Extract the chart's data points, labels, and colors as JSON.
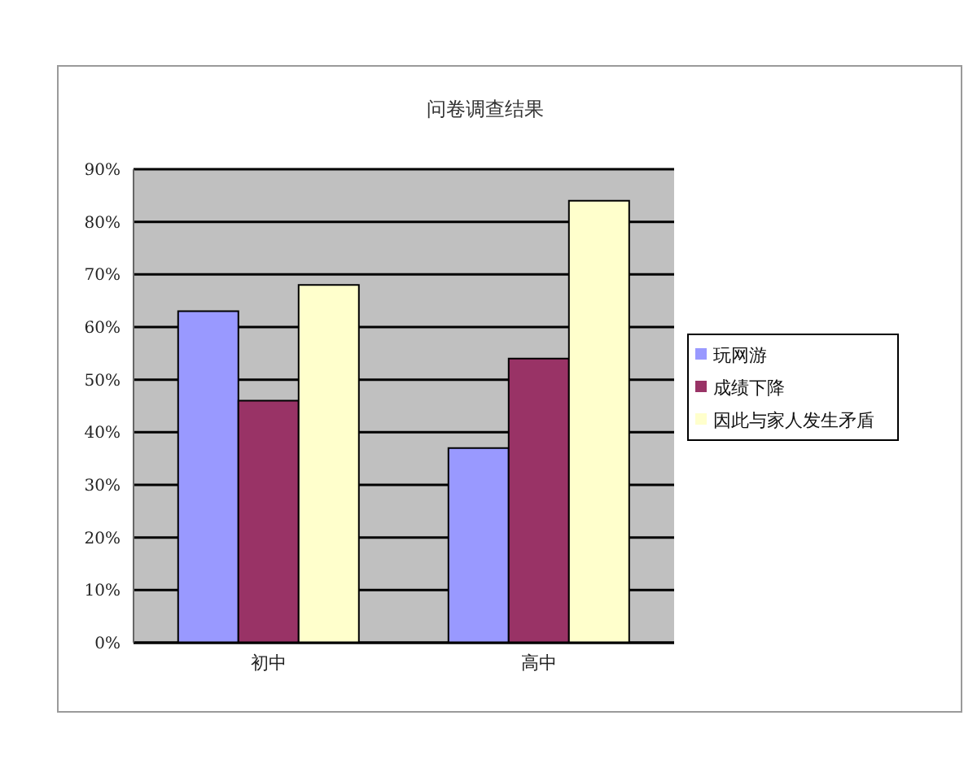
{
  "chart_data": {
    "type": "bar",
    "title": "问卷调查结果",
    "categories": [
      "初中",
      "高中"
    ],
    "series": [
      {
        "name": "玩网游",
        "color": "#9999ff",
        "values": [
          63,
          37
        ]
      },
      {
        "name": "成绩下降",
        "color": "#993366",
        "values": [
          46,
          54
        ]
      },
      {
        "name": "因此与家人发生矛盾",
        "color": "#ffffcc",
        "values": [
          68,
          84
        ]
      }
    ],
    "ylim": [
      0,
      90
    ],
    "yticks": [
      {
        "value": 0,
        "label": "0%"
      },
      {
        "value": 10,
        "label": "10%"
      },
      {
        "value": 20,
        "label": "20%"
      },
      {
        "value": 30,
        "label": "30%"
      },
      {
        "value": 40,
        "label": "40%"
      },
      {
        "value": 50,
        "label": "50%"
      },
      {
        "value": 60,
        "label": "60%"
      },
      {
        "value": 70,
        "label": "70%"
      },
      {
        "value": 80,
        "label": "80%"
      },
      {
        "value": 90,
        "label": "90%"
      }
    ],
    "grid": "y",
    "legend": "right"
  }
}
